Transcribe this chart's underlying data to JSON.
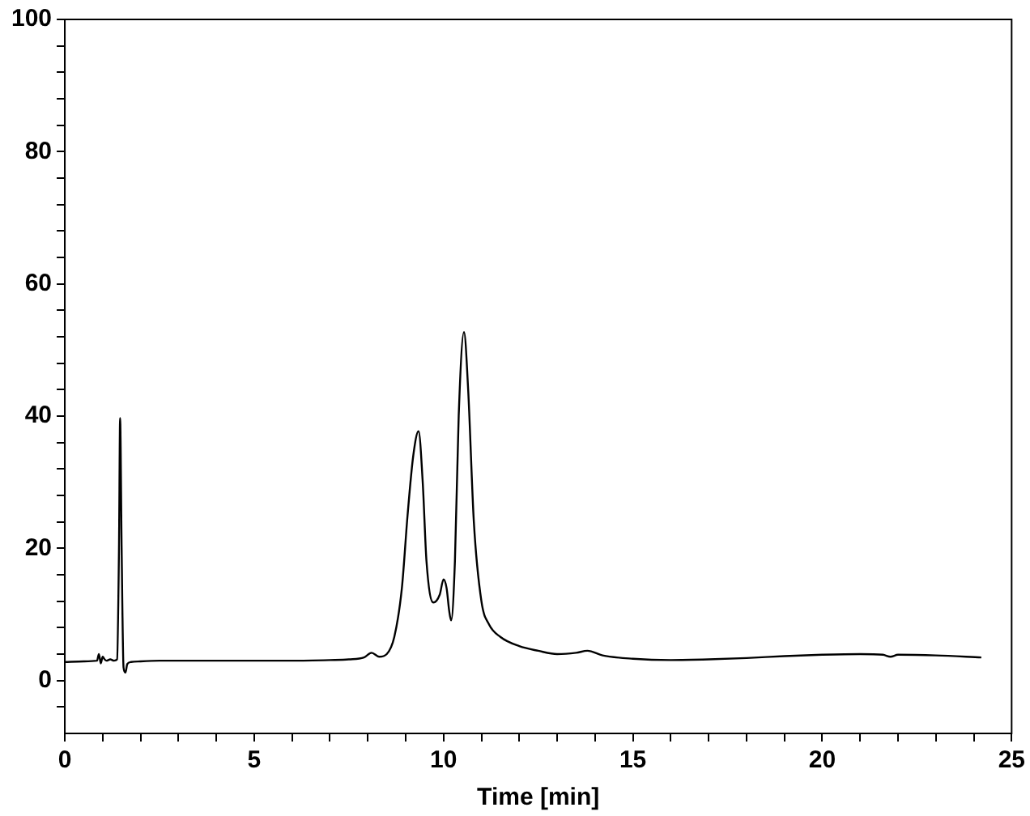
{
  "chart_data": {
    "type": "line",
    "xlabel": "Time [min]",
    "xlim": [
      0,
      25
    ],
    "ylim": [
      -8,
      100
    ],
    "xticks": [
      0,
      {
        "value": 1,
        "label": null
      },
      {
        "value": 2,
        "label": null
      },
      {
        "value": 3,
        "label": null
      },
      {
        "value": 4,
        "label": null
      },
      5,
      {
        "value": 6,
        "label": null
      },
      {
        "value": 7,
        "label": null
      },
      {
        "value": 8,
        "label": null
      },
      {
        "value": 9,
        "label": null
      },
      10,
      {
        "value": 11,
        "label": null
      },
      {
        "value": 12,
        "label": null
      },
      {
        "value": 13,
        "label": null
      },
      {
        "value": 14,
        "label": null
      },
      15,
      {
        "value": 16,
        "label": null
      },
      {
        "value": 17,
        "label": null
      },
      {
        "value": 18,
        "label": null
      },
      {
        "value": 19,
        "label": null
      },
      20,
      {
        "value": 21,
        "label": null
      },
      {
        "value": 22,
        "label": null
      },
      {
        "value": 23,
        "label": null
      },
      {
        "value": 24,
        "label": null
      },
      25
    ],
    "yticks": [
      {
        "value": -4,
        "label": null
      },
      0,
      {
        "value": 4,
        "label": null
      },
      {
        "value": 8,
        "label": null
      },
      {
        "value": 12,
        "label": null
      },
      {
        "value": 16,
        "label": null
      },
      20,
      {
        "value": 24,
        "label": null
      },
      {
        "value": 28,
        "label": null
      },
      {
        "value": 32,
        "label": null
      },
      {
        "value": 36,
        "label": null
      },
      40,
      {
        "value": 44,
        "label": null
      },
      {
        "value": 48,
        "label": null
      },
      {
        "value": 52,
        "label": null
      },
      {
        "value": 56,
        "label": null
      },
      60,
      {
        "value": 64,
        "label": null
      },
      {
        "value": 68,
        "label": null
      },
      {
        "value": 72,
        "label": null
      },
      {
        "value": 76,
        "label": null
      },
      80,
      {
        "value": 84,
        "label": null
      },
      {
        "value": 88,
        "label": null
      },
      {
        "value": 92,
        "label": null
      },
      {
        "value": 96,
        "label": null
      },
      100
    ],
    "grid": false,
    "legend": false,
    "marker": "none",
    "line_style": "solid",
    "series": [
      {
        "color": "#000000",
        "x": [
          0,
          0.5,
          0.85,
          0.9,
          0.95,
          1.0,
          1.05,
          1.1,
          1.2,
          1.3,
          1.38,
          1.43,
          1.46,
          1.5,
          1.55,
          1.6,
          1.65,
          1.75,
          2.0,
          2.5,
          3,
          4,
          5,
          6,
          7,
          7.5,
          7.9,
          8.1,
          8.3,
          8.5,
          8.7,
          8.9,
          9.05,
          9.2,
          9.34,
          9.45,
          9.55,
          9.73,
          9.9,
          10.0,
          10.08,
          10.15,
          10.2,
          10.3,
          10.4,
          10.54,
          10.65,
          10.8,
          11.0,
          11.2,
          11.5,
          12.0,
          12.5,
          13.0,
          13.5,
          13.8,
          14.2,
          15,
          16,
          17,
          18,
          19,
          20,
          21,
          21.6,
          21.8,
          22,
          23,
          24.2
        ],
        "values": [
          2.8,
          2.9,
          3.0,
          4.0,
          2.6,
          3.6,
          3.2,
          3.0,
          3.2,
          3.0,
          3.2,
          20,
          39.7,
          20,
          2.0,
          1.2,
          2.5,
          2.8,
          2.9,
          3.0,
          3.0,
          3.0,
          3.0,
          3.0,
          3.1,
          3.2,
          3.5,
          4.2,
          3.6,
          4.0,
          6.6,
          14,
          25,
          34,
          37.7,
          30,
          18,
          11.8,
          13,
          15.3,
          14,
          10.5,
          9.1,
          18,
          40,
          52.7,
          44,
          24,
          12,
          8.5,
          6.6,
          5.2,
          4.5,
          4.0,
          4.2,
          4.5,
          3.8,
          3.3,
          3.1,
          3.2,
          3.4,
          3.7,
          3.9,
          4.0,
          3.9,
          3.6,
          3.9,
          3.8,
          3.5
        ]
      }
    ]
  }
}
